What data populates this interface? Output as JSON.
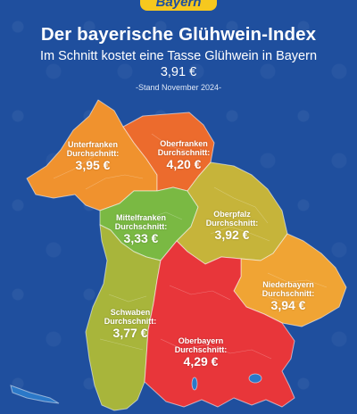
{
  "header": {
    "logo_text": "Bayern",
    "title": "Der bayerische Glühwein-Index",
    "subtitle": "Im Schnitt kostet eine Tasse Glühwein in Bayern 3,91 €",
    "stand": "-Stand November 2024-"
  },
  "regions": [
    {
      "key": "unterfranken",
      "name": "Unterfranken",
      "label": "Durchschnitt:",
      "price": "3,95 €",
      "color": "#f0922e"
    },
    {
      "key": "oberfranken",
      "name": "Oberfranken",
      "label": "Durchschnitt:",
      "price": "4,20 €",
      "color": "#ec6b2d"
    },
    {
      "key": "mittelfranken",
      "name": "Mittelfranken",
      "label": "Durchschnitt:",
      "price": "3,33 €",
      "color": "#7ab943"
    },
    {
      "key": "oberpfalz",
      "name": "Oberpfalz",
      "label": "Durchschnitt:",
      "price": "3,92 €",
      "color": "#c6b43a"
    },
    {
      "key": "niederbayern",
      "name": "Niederbayern",
      "label": "Durchschnitt:",
      "price": "3,94 €",
      "color": "#f0a434"
    },
    {
      "key": "schwaben",
      "name": "Schwaben",
      "label": "Durchschnitt:",
      "price": "3,77 €",
      "color": "#a8b53b"
    },
    {
      "key": "oberbayern",
      "name": "Oberbayern",
      "label": "Durchschnitt:",
      "price": "4,29 €",
      "color": "#e8363a"
    }
  ],
  "colors": {
    "background": "#1f4f9e",
    "logo": "#f6c81e",
    "lake": "#2b78c8"
  }
}
